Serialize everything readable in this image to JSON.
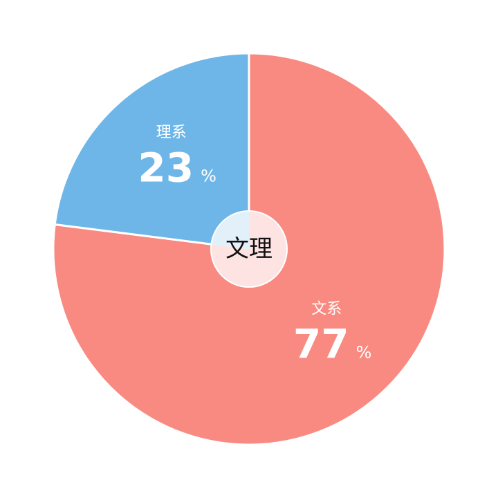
{
  "chart_data": {
    "type": "pie",
    "title": "",
    "center_label": "文理",
    "unit": "%",
    "start": "top",
    "direction": "clockwise",
    "slices": [
      {
        "label": "文系",
        "value": 77,
        "color": "#f88a81",
        "center_color": "#fde3e1"
      },
      {
        "label": "理系",
        "value": 23,
        "color": "#6eb6e8",
        "center_color": "#e2f0fa"
      }
    ]
  }
}
